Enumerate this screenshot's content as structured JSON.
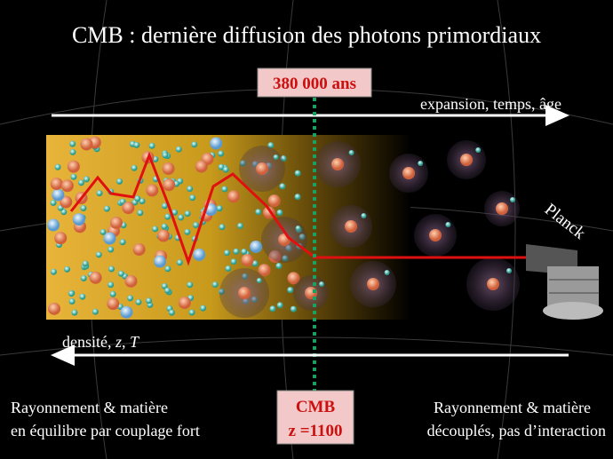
{
  "title": "CMB : dernière diffusion des photons primordiaux",
  "epoch_box": "380 000 ans",
  "expansion_label": "expansion, temps, âge",
  "planck_label": "Planck",
  "density_label": [
    "densité, ",
    "z",
    ", ",
    "T"
  ],
  "cmb_box": {
    "line1": "CMB",
    "line2": "z =1100"
  },
  "left_text": [
    "Rayonnement & matière",
    "en équilibre par couplage fort"
  ],
  "right_text": [
    "Rayonnement & matière",
    "découplés, pas d’interaction"
  ]
}
